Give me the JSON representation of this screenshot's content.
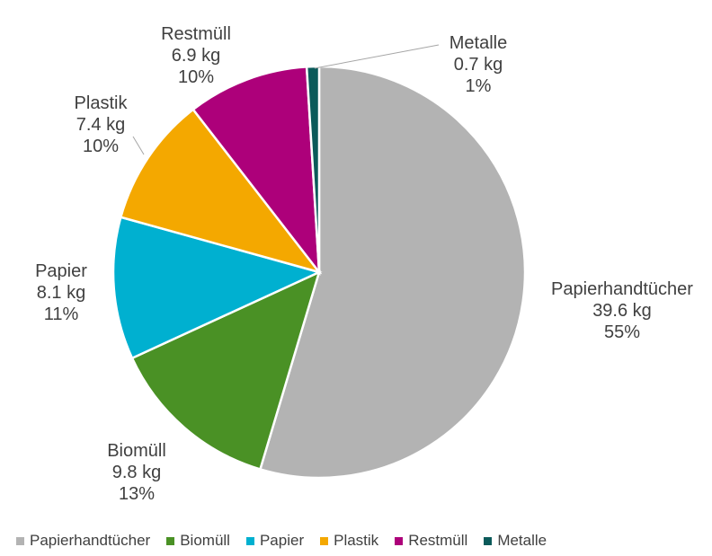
{
  "chart_data": {
    "type": "pie",
    "title": "",
    "unit": "kg",
    "slices": [
      {
        "name": "Papierhandtücher",
        "value": 39.6,
        "value_label": "39.6 kg",
        "percent_label": "55%",
        "color": "#b3b3b3"
      },
      {
        "name": "Biomüll",
        "value": 9.8,
        "value_label": "9.8 kg",
        "percent_label": "13%",
        "color": "#4a9125"
      },
      {
        "name": "Papier",
        "value": 8.1,
        "value_label": "8.1 kg",
        "percent_label": "11%",
        "color": "#00b0d0"
      },
      {
        "name": "Plastik",
        "value": 7.4,
        "value_label": "7.4 kg",
        "percent_label": "10%",
        "color": "#f4a800"
      },
      {
        "name": "Restmüll",
        "value": 6.9,
        "value_label": "6.9 kg",
        "percent_label": "10%",
        "color": "#ad007a"
      },
      {
        "name": "Metalle",
        "value": 0.7,
        "value_label": "0.7 kg",
        "percent_label": "1%",
        "color": "#0b5a5a"
      }
    ],
    "legend_position": "bottom"
  }
}
